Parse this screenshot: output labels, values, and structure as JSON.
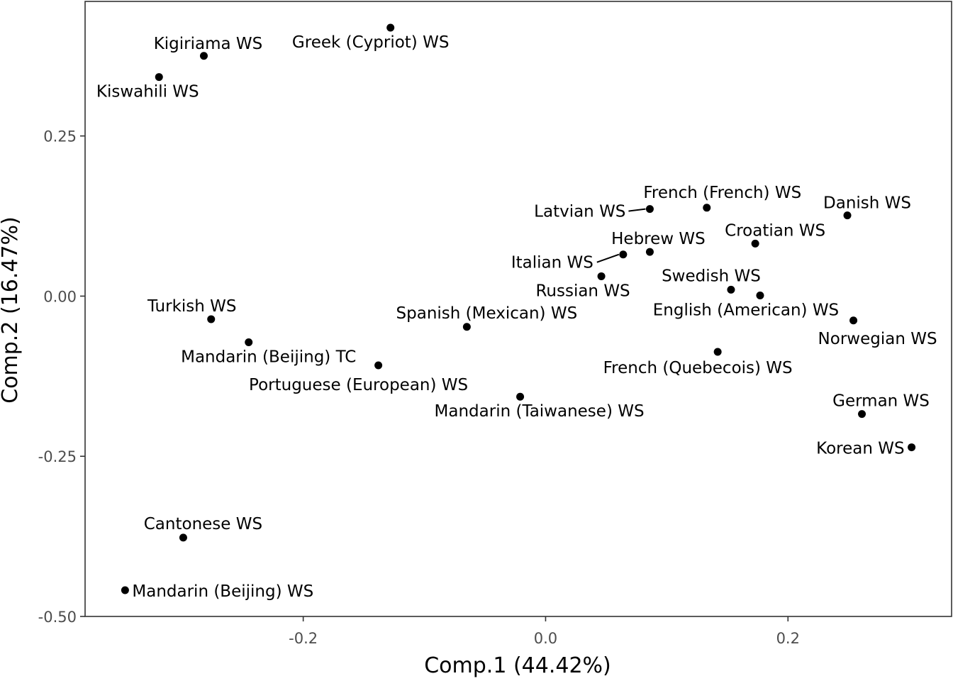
{
  "chart_data": {
    "type": "scatter",
    "title": "",
    "xlabel": "Comp.1 (44.42%)",
    "ylabel": "Comp.2 (16.47%)",
    "xlim": [
      -0.38,
      0.335
    ],
    "ylim": [
      -0.5,
      0.46
    ],
    "grid": false,
    "point_color": "#000000",
    "x_ticks": [
      {
        "value": -0.2,
        "label": "-0.2"
      },
      {
        "value": 0.0,
        "label": "0.0"
      },
      {
        "value": 0.2,
        "label": "0.2"
      }
    ],
    "y_ticks": [
      {
        "value": 0.25,
        "label": "0.25"
      },
      {
        "value": 0.0,
        "label": "0.00"
      },
      {
        "value": -0.25,
        "label": "-0.25"
      },
      {
        "value": -0.5,
        "label": "-0.50"
      }
    ],
    "points": [
      {
        "label": "Greek (Cypriot) WS",
        "x": -0.128,
        "y": 0.419
      },
      {
        "label": "Kigiriama WS",
        "x": -0.282,
        "y": 0.375
      },
      {
        "label": "Kiswahili WS",
        "x": -0.319,
        "y": 0.342
      },
      {
        "label": "Latvian WS",
        "x": 0.086,
        "y": 0.136
      },
      {
        "label": "French (French) WS",
        "x": 0.133,
        "y": 0.138
      },
      {
        "label": "Danish WS",
        "x": 0.249,
        "y": 0.126
      },
      {
        "label": "Croatian WS",
        "x": 0.173,
        "y": 0.082
      },
      {
        "label": "Hebrew WS",
        "x": 0.086,
        "y": 0.069
      },
      {
        "label": "Italian WS",
        "x": 0.064,
        "y": 0.065
      },
      {
        "label": "Russian WS",
        "x": 0.046,
        "y": 0.031
      },
      {
        "label": "Swedish WS",
        "x": 0.153,
        "y": 0.01
      },
      {
        "label": "English (American) WS",
        "x": 0.177,
        "y": 0.001
      },
      {
        "label": "Norwegian WS",
        "x": 0.254,
        "y": -0.038
      },
      {
        "label": "Turkish WS",
        "x": -0.276,
        "y": -0.036
      },
      {
        "label": "Spanish (Mexican) WS",
        "x": -0.065,
        "y": -0.048
      },
      {
        "label": "Mandarin (Beijing) TC",
        "x": -0.245,
        "y": -0.072
      },
      {
        "label": "French (Quebecois) WS",
        "x": 0.142,
        "y": -0.087
      },
      {
        "label": "Portuguese (European) WS",
        "x": -0.138,
        "y": -0.108
      },
      {
        "label": "Mandarin (Taiwanese) WS",
        "x": -0.021,
        "y": -0.157
      },
      {
        "label": "German WS",
        "x": 0.261,
        "y": -0.184
      },
      {
        "label": "Korean WS",
        "x": 0.302,
        "y": -0.236
      },
      {
        "label": "Cantonese WS",
        "x": -0.299,
        "y": -0.377
      },
      {
        "label": "Mandarin (Beijing) WS",
        "x": -0.347,
        "y": -0.459
      }
    ]
  }
}
